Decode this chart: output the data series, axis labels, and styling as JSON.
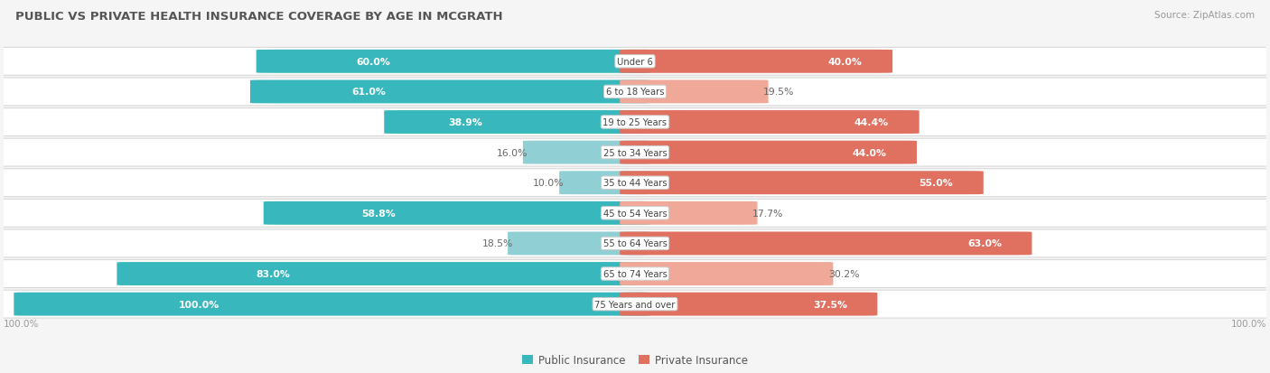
{
  "title": "PUBLIC VS PRIVATE HEALTH INSURANCE COVERAGE BY AGE IN MCGRATH",
  "source": "Source: ZipAtlas.com",
  "categories": [
    "Under 6",
    "6 to 18 Years",
    "19 to 25 Years",
    "25 to 34 Years",
    "35 to 44 Years",
    "45 to 54 Years",
    "55 to 64 Years",
    "65 to 74 Years",
    "75 Years and over"
  ],
  "public_values": [
    60.0,
    61.0,
    38.9,
    16.0,
    10.0,
    58.8,
    18.5,
    83.0,
    100.0
  ],
  "private_values": [
    40.0,
    19.5,
    44.4,
    44.0,
    55.0,
    17.7,
    63.0,
    30.2,
    37.5
  ],
  "public_color": "#38b8bc",
  "private_color": "#e07060",
  "public_color_light": "#90d0d4",
  "private_color_light": "#f0a898",
  "bg_color": "#f5f5f5",
  "row_bg_color": "#ffffff",
  "row_border_color": "#d8d8d8",
  "title_color": "#555555",
  "label_dark_color": "#ffffff",
  "label_light_color": "#666666",
  "axis_label_color": "#999999",
  "legend_label_color": "#555555",
  "max_val": 100.0,
  "pub_inside_threshold": 25.0,
  "priv_inside_threshold": 35.0
}
